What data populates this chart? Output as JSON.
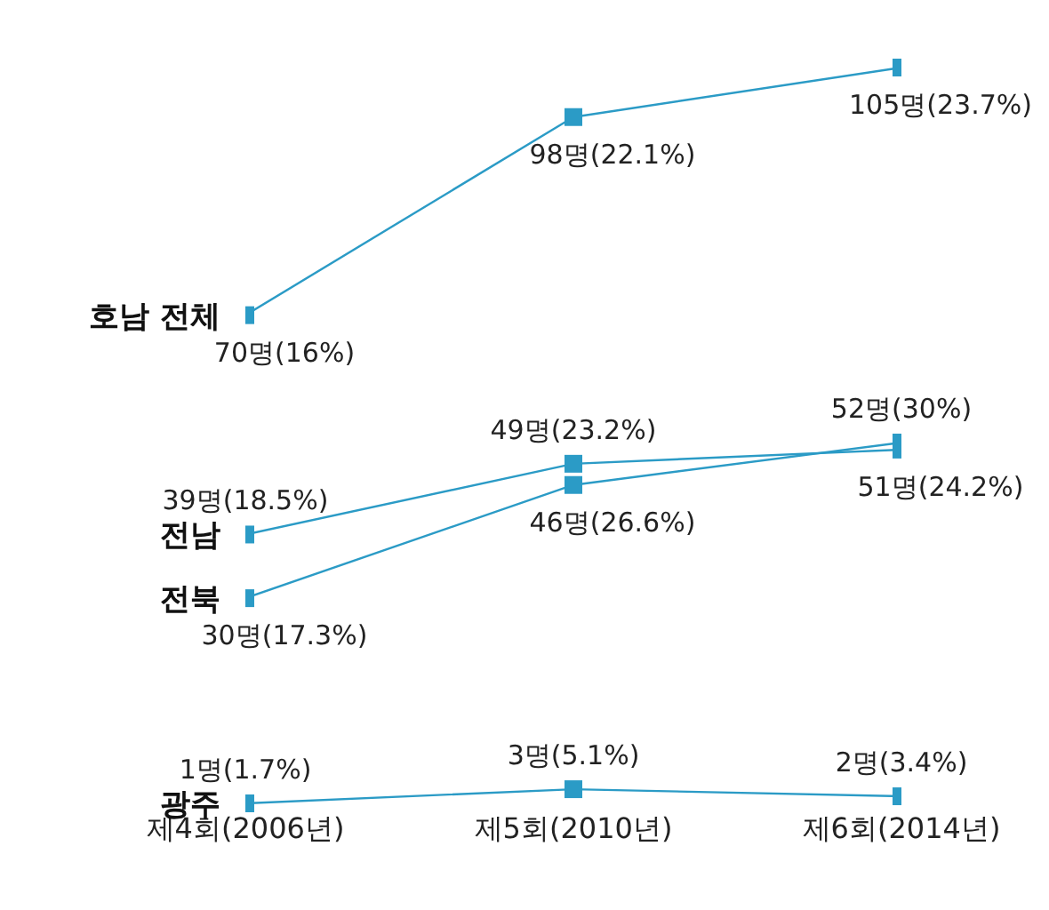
{
  "chart_data": {
    "type": "line",
    "categories": [
      "제4회(2006년)",
      "제5회(2010년)",
      "제6회(2014년)"
    ],
    "series": [
      {
        "name": "호남 전체",
        "color": "#2b9bc6",
        "values": [
          70,
          98,
          105
        ],
        "value_labels": [
          "70명(16%)",
          "98명(22.1%)",
          "105명(23.7%)"
        ]
      },
      {
        "name": "전남",
        "color": "#2b9bc6",
        "values": [
          39,
          49,
          51
        ],
        "value_labels": [
          "39명(18.5%)",
          "49명(23.2%)",
          "51명(24.2%)"
        ]
      },
      {
        "name": "전북",
        "color": "#2b9bc6",
        "values": [
          30,
          46,
          52
        ],
        "value_labels": [
          "30명(17.3%)",
          "46명(26.6%)",
          "52명(30%)"
        ]
      },
      {
        "name": "광주",
        "color": "#2b9bc6",
        "values": [
          1,
          3,
          2
        ],
        "value_labels": [
          "1명(1.7%)",
          "3명(5.1%)",
          "2명(3.4%)"
        ]
      }
    ],
    "tick_labels": "x",
    "grid": false,
    "legend": false,
    "marker": "square",
    "line_style": "solid"
  }
}
